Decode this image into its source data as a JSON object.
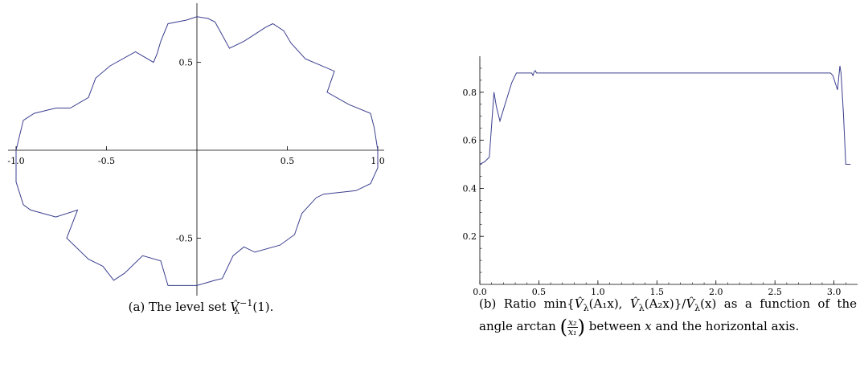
{
  "chart_data": [
    {
      "type": "line",
      "title": "",
      "xlabel": "",
      "ylabel": "",
      "xlim": [
        -1.0,
        1.0
      ],
      "ylim": [
        -0.8,
        0.8
      ],
      "x_ticks": [
        -1.0,
        -0.5,
        0.5,
        1.0
      ],
      "x_tick_labels": [
        "-1.0",
        "-0.5",
        "0.5",
        "1.0"
      ],
      "y_ticks": [
        -0.5,
        0.5
      ],
      "y_tick_labels": [
        "-0.5",
        "0.5"
      ],
      "axes_through_origin": true,
      "line_color": "#3b3f8f",
      "series": [
        {
          "x": [
            1.0,
            0.98,
            0.96,
            0.84,
            0.72,
            0.76,
            0.6,
            0.52,
            0.48,
            0.42,
            0.38,
            0.26,
            0.18,
            0.1,
            0.06,
            0.0,
            -0.06,
            -0.16,
            -0.2,
            -0.22,
            -0.24,
            -0.34,
            -0.48,
            -0.56,
            -0.6,
            -0.7,
            -0.78,
            -0.9,
            -0.96,
            -1.0,
            -1.0,
            -0.96,
            -0.92,
            -0.78,
            -0.66,
            -0.72,
            -0.6,
            -0.52,
            -0.46,
            -0.4,
            -0.3,
            -0.2,
            -0.16,
            -0.1,
            0.0,
            0.1,
            0.14,
            0.2,
            0.26,
            0.32,
            0.46,
            0.54,
            0.58,
            0.66,
            0.7,
            0.88,
            0.96,
            1.0,
            1.0
          ],
          "y": [
            0.0,
            0.13,
            0.21,
            0.26,
            0.33,
            0.45,
            0.52,
            0.61,
            0.68,
            0.72,
            0.7,
            0.62,
            0.58,
            0.73,
            0.75,
            0.76,
            0.74,
            0.72,
            0.62,
            0.55,
            0.5,
            0.56,
            0.48,
            0.41,
            0.3,
            0.24,
            0.24,
            0.21,
            0.17,
            0.0,
            -0.18,
            -0.31,
            -0.34,
            -0.38,
            -0.34,
            -0.5,
            -0.62,
            -0.66,
            -0.74,
            -0.7,
            -0.6,
            -0.63,
            -0.77,
            -0.77,
            -0.77,
            -0.74,
            -0.73,
            -0.6,
            -0.55,
            -0.58,
            -0.54,
            -0.48,
            -0.36,
            -0.27,
            -0.25,
            -0.23,
            -0.19,
            -0.1,
            0.0
          ]
        }
      ]
    },
    {
      "type": "line",
      "title": "",
      "xlabel": "",
      "ylabel": "",
      "xlim": [
        0.0,
        3.2
      ],
      "ylim": [
        0.0,
        0.95
      ],
      "x_ticks": [
        0.0,
        0.5,
        1.0,
        1.5,
        2.0,
        2.5,
        3.0
      ],
      "x_tick_labels": [
        "0.0",
        "0.5",
        "1.0",
        "1.5",
        "2.0",
        "2.5",
        "3.0"
      ],
      "y_ticks": [
        0.2,
        0.4,
        0.6,
        0.8
      ],
      "y_tick_labels": [
        "0.2",
        "0.4",
        "0.6",
        "0.8"
      ],
      "line_color": "#3b3f8f",
      "series": [
        {
          "x": [
            0.0,
            0.04,
            0.08,
            0.12,
            0.14,
            0.17,
            0.22,
            0.27,
            0.31,
            0.44,
            0.45,
            0.46,
            0.47,
            0.48,
            2.97,
            2.99,
            3.01,
            3.03,
            3.05,
            3.06,
            3.08,
            3.1,
            3.14
          ],
          "y": [
            0.5,
            0.51,
            0.53,
            0.8,
            0.74,
            0.68,
            0.76,
            0.84,
            0.88,
            0.88,
            0.87,
            0.885,
            0.89,
            0.88,
            0.88,
            0.87,
            0.84,
            0.81,
            0.91,
            0.88,
            0.71,
            0.5,
            0.5
          ]
        }
      ]
    }
  ],
  "captions": {
    "a": {
      "label": "(a)",
      "text": "The level set ",
      "math_base": "V̂",
      "math_sub": "λ",
      "math_sup": "−1",
      "math_arg": "(1)."
    },
    "b": {
      "label": "(b)",
      "part1": "Ratio  min{",
      "v": "V̂",
      "lambda": "λ",
      "a1x": "(A₁x), ",
      "a2x": "(A₂x)}/",
      "vx": "(x)",
      "part2": "  as a function of the angle arctan",
      "num": "x₂",
      "den": "x₁",
      "part3": " between ",
      "x": "x",
      "part4": " and the horizontal axis."
    }
  }
}
